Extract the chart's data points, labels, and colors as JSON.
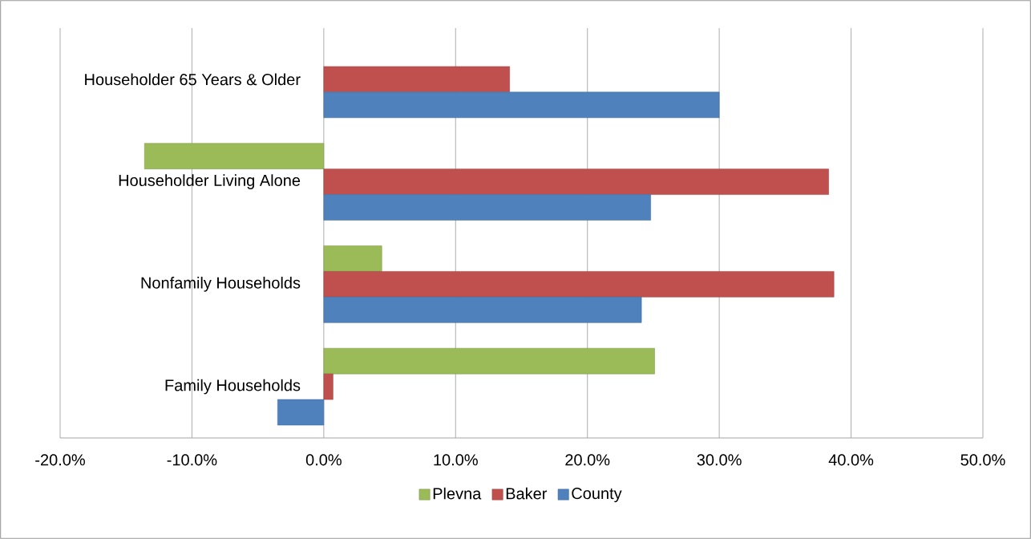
{
  "chart_data": {
    "type": "bar",
    "orientation": "horizontal",
    "categories": [
      "Householder 65 Years & Older",
      "Householder Living Alone",
      "Nonfamily Households",
      "Family Households"
    ],
    "series": [
      {
        "name": "Plevna",
        "color": "#9bbb59",
        "values": [
          null,
          -13.6,
          4.4,
          25.1
        ]
      },
      {
        "name": "Baker",
        "color": "#c0504d",
        "values": [
          14.1,
          38.3,
          38.7,
          0.7
        ]
      },
      {
        "name": "County",
        "color": "#4f81bd",
        "values": [
          30.0,
          24.8,
          24.1,
          -3.5
        ]
      }
    ],
    "xlim": [
      -20,
      50
    ],
    "xticks": [
      {
        "value": -20,
        "label": "-20.0%"
      },
      {
        "value": -10,
        "label": "-10.0%"
      },
      {
        "value": 0,
        "label": "0.0%"
      },
      {
        "value": 10,
        "label": "10.0%"
      },
      {
        "value": 20,
        "label": "20.0%"
      },
      {
        "value": 30,
        "label": "30.0%"
      },
      {
        "value": 40,
        "label": "40.0%"
      },
      {
        "value": 50,
        "label": "50.0%"
      }
    ],
    "grid": "x",
    "legend": "bottom"
  }
}
